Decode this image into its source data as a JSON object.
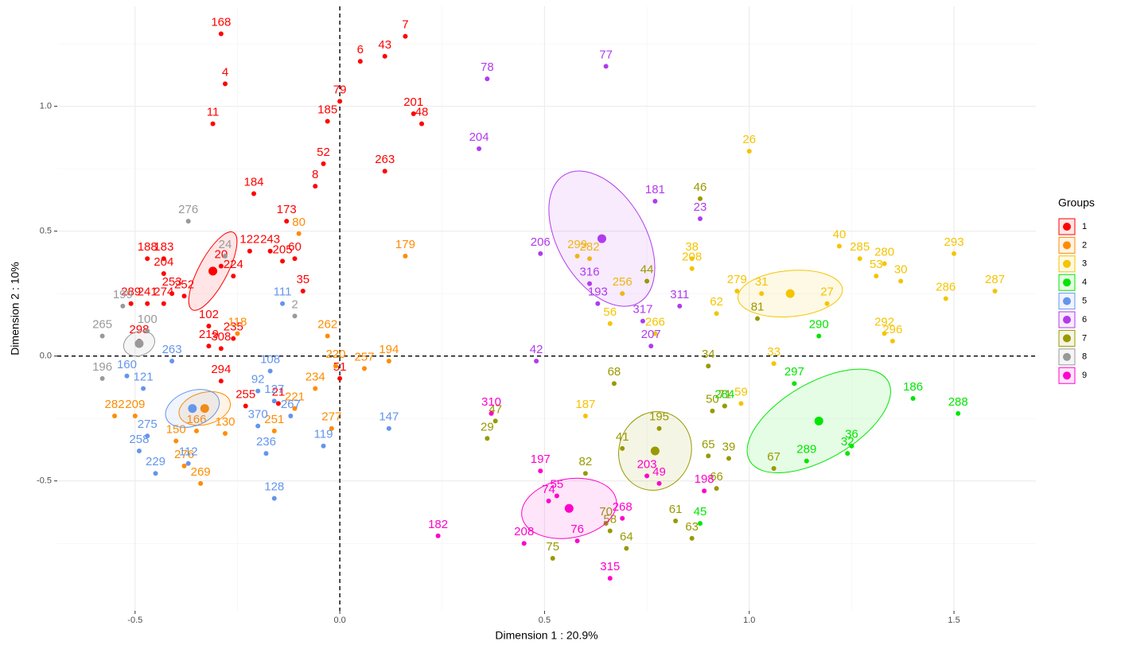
{
  "chart_data": {
    "type": "scatter",
    "x_label": "Dimension 1 : 20.9%",
    "y_label": "Dimension 2 : 10%",
    "legend_title": "Groups",
    "legend": "right",
    "grid": true,
    "origin_lines": true,
    "xlim": [
      -0.69,
      1.7
    ],
    "ylim": [
      -1.02,
      1.4
    ],
    "xticks": [
      -0.5,
      {
        "value": 0,
        "label": "0.0"
      },
      0.5,
      {
        "value": 1,
        "label": "1.0"
      },
      1.5
    ],
    "yticks": [
      -0.5,
      {
        "value": 0,
        "label": "0.0"
      },
      0.5,
      {
        "value": 1,
        "label": "1.0"
      }
    ],
    "xminor": [
      -0.25,
      0.25,
      0.75,
      1.25
    ],
    "yminor": [
      -0.75,
      -0.25,
      0.25,
      0.75,
      1.25
    ],
    "series": [
      {
        "name": "1",
        "color": "#ff0000",
        "centroid": [
          -0.31,
          0.34
        ],
        "ellipse": [
          0.107,
          0.057,
          -62
        ],
        "labels": [
          "168",
          "4",
          "11",
          "7",
          "6",
          "43",
          "79",
          "185",
          "201",
          "48",
          "52",
          "8",
          "263",
          "184",
          "173",
          "122",
          "243",
          "205",
          "60",
          "20",
          "224",
          "35",
          "102",
          "235",
          "219",
          "308",
          "51",
          "294",
          "255",
          "21",
          "188",
          "183",
          "204",
          "289",
          "241",
          "253",
          "252",
          "274",
          "298"
        ],
        "x": [
          -0.29,
          -0.28,
          -0.31,
          0.16,
          0.05,
          0.11,
          0.0,
          -0.03,
          0.18,
          0.2,
          -0.04,
          -0.06,
          0.11,
          -0.21,
          -0.13,
          -0.22,
          -0.17,
          -0.14,
          -0.11,
          -0.29,
          -0.26,
          -0.09,
          -0.32,
          -0.26,
          -0.32,
          -0.29,
          0.0,
          -0.29,
          -0.23,
          -0.15,
          -0.47,
          -0.43,
          -0.43,
          -0.51,
          -0.47,
          -0.41,
          -0.38,
          -0.43,
          -0.49
        ],
        "values": [
          1.29,
          1.09,
          0.93,
          1.28,
          1.18,
          1.2,
          1.02,
          0.94,
          0.97,
          0.93,
          0.77,
          0.68,
          0.74,
          0.65,
          0.54,
          0.42,
          0.42,
          0.38,
          0.39,
          0.36,
          0.32,
          0.26,
          0.12,
          0.07,
          0.04,
          0.03,
          -0.09,
          -0.1,
          -0.2,
          -0.19,
          0.39,
          0.39,
          0.33,
          0.21,
          0.21,
          0.25,
          0.24,
          0.21,
          0.06
        ]
      },
      {
        "name": "2",
        "color": "#ff8c00",
        "centroid": [
          -0.33,
          -0.21
        ],
        "ellipse": [
          0.064,
          0.064,
          -15
        ],
        "labels": [
          "80",
          "179",
          "262",
          "220",
          "257",
          "194",
          "234",
          "221",
          "277",
          "251",
          "269",
          "276",
          "166",
          "130",
          "209",
          "282",
          "118",
          "150"
        ],
        "x": [
          -0.1,
          0.16,
          -0.03,
          -0.01,
          0.06,
          0.12,
          -0.06,
          -0.11,
          -0.02,
          -0.16,
          -0.34,
          -0.38,
          -0.35,
          -0.28,
          -0.5,
          -0.55,
          -0.25,
          -0.4
        ],
        "values": [
          0.49,
          0.4,
          0.08,
          -0.04,
          -0.05,
          -0.02,
          -0.13,
          -0.21,
          -0.29,
          -0.3,
          -0.51,
          -0.44,
          -0.3,
          -0.31,
          -0.24,
          -0.24,
          0.09,
          -0.34
        ]
      },
      {
        "name": "3",
        "color": "#f5c400",
        "centroid": [
          1.1,
          0.25
        ],
        "ellipse": [
          0.128,
          0.092,
          -5
        ],
        "labels": [
          "26",
          "40",
          "285",
          "280",
          "53",
          "30",
          "293",
          "287",
          "286",
          "292",
          "296",
          "27",
          "31",
          "279",
          "38",
          "208",
          "299",
          "282",
          "256",
          "56",
          "62",
          "266",
          "33",
          "59",
          "187"
        ],
        "x": [
          1.0,
          1.22,
          1.27,
          1.33,
          1.31,
          1.37,
          1.5,
          1.6,
          1.48,
          1.33,
          1.35,
          1.19,
          1.03,
          0.97,
          0.86,
          0.86,
          0.58,
          0.61,
          0.69,
          0.66,
          0.92,
          0.77,
          1.06,
          0.98,
          0.6
        ],
        "values": [
          0.82,
          0.44,
          0.39,
          0.37,
          0.32,
          0.3,
          0.41,
          0.26,
          0.23,
          0.09,
          0.06,
          0.21,
          0.25,
          0.26,
          0.39,
          0.35,
          0.4,
          0.39,
          0.25,
          0.13,
          0.17,
          0.09,
          -0.03,
          -0.19,
          -0.24
        ]
      },
      {
        "name": "4",
        "color": "#00e600",
        "centroid": [
          1.17,
          -0.26
        ],
        "ellipse": [
          0.195,
          0.153,
          -30
        ],
        "labels": [
          "290",
          "297",
          "186",
          "288",
          "284",
          "32",
          "36",
          "289",
          "45"
        ],
        "x": [
          1.17,
          1.11,
          1.4,
          1.51,
          0.94,
          1.24,
          1.25,
          1.14,
          0.88
        ],
        "values": [
          0.08,
          -0.11,
          -0.17,
          -0.23,
          -0.2,
          -0.39,
          -0.36,
          -0.42,
          -0.67
        ]
      },
      {
        "name": "5",
        "color": "#6495ed",
        "centroid": [
          -0.36,
          -0.21
        ],
        "ellipse": [
          0.068,
          0.07,
          -20
        ],
        "labels": [
          "111",
          "108",
          "92",
          "127",
          "370",
          "267",
          "236",
          "119",
          "128",
          "147",
          "229",
          "258",
          "275",
          "160",
          "121",
          "263",
          "112"
        ],
        "x": [
          -0.14,
          -0.17,
          -0.2,
          -0.16,
          -0.2,
          -0.12,
          -0.18,
          -0.04,
          -0.16,
          0.12,
          -0.45,
          -0.49,
          -0.47,
          -0.52,
          -0.48,
          -0.41,
          -0.37
        ],
        "values": [
          0.21,
          -0.06,
          -0.14,
          -0.18,
          -0.28,
          -0.24,
          -0.39,
          -0.36,
          -0.57,
          -0.29,
          -0.47,
          -0.38,
          -0.32,
          -0.08,
          -0.13,
          -0.02,
          -0.43
        ]
      },
      {
        "name": "6",
        "color": "#b23aee",
        "centroid": [
          0.64,
          0.47
        ],
        "ellipse": [
          0.107,
          0.296,
          -30
        ],
        "labels": [
          "78",
          "77",
          "204",
          "181",
          "23",
          "206",
          "316",
          "193",
          "317",
          "311",
          "207",
          "42"
        ],
        "x": [
          0.36,
          0.65,
          0.34,
          0.77,
          0.88,
          0.49,
          0.61,
          0.63,
          0.74,
          0.83,
          0.76,
          0.48
        ],
        "values": [
          1.11,
          1.16,
          0.83,
          0.62,
          0.55,
          0.41,
          0.29,
          0.21,
          0.14,
          0.2,
          0.04,
          -0.02
        ]
      },
      {
        "name": "7",
        "color": "#999900",
        "centroid": [
          0.77,
          -0.38
        ],
        "ellipse": [
          0.088,
          0.159,
          20
        ],
        "labels": [
          "46",
          "44",
          "81",
          "34",
          "68",
          "71",
          "50",
          "47",
          "29",
          "195",
          "41",
          "65",
          "39",
          "67",
          "66",
          "82",
          "61",
          "63",
          "64",
          "75",
          "70",
          "58"
        ],
        "x": [
          0.88,
          0.75,
          1.02,
          0.9,
          0.67,
          0.94,
          0.91,
          0.38,
          0.36,
          0.78,
          0.69,
          0.9,
          0.95,
          1.06,
          0.92,
          0.6,
          0.82,
          0.86,
          0.7,
          0.52,
          0.65,
          0.66
        ],
        "values": [
          0.63,
          0.3,
          0.15,
          -0.04,
          -0.11,
          -0.2,
          -0.22,
          -0.26,
          -0.33,
          -0.29,
          -0.37,
          -0.4,
          -0.41,
          -0.45,
          -0.53,
          -0.47,
          -0.66,
          -0.73,
          -0.77,
          -0.81,
          -0.67,
          -0.7
        ]
      },
      {
        "name": "8",
        "color": "#999999",
        "centroid": [
          -0.49,
          0.05
        ],
        "ellipse": [
          0.039,
          0.048,
          -20
        ],
        "labels": [
          "276",
          "24",
          "199",
          "100",
          "2",
          "265",
          "196"
        ],
        "x": [
          -0.37,
          -0.28,
          -0.53,
          -0.47,
          -0.11,
          -0.58,
          -0.58
        ],
        "values": [
          0.54,
          0.4,
          0.2,
          0.1,
          0.16,
          0.08,
          -0.09
        ]
      },
      {
        "name": "9",
        "color": "#ff00cc",
        "centroid": [
          0.56,
          -0.61
        ],
        "ellipse": [
          0.117,
          0.118,
          -10
        ],
        "labels": [
          "310",
          "197",
          "55",
          "74",
          "76",
          "182",
          "208",
          "315",
          "203",
          "49",
          "198",
          "268"
        ],
        "x": [
          0.37,
          0.49,
          0.53,
          0.51,
          0.58,
          0.24,
          0.45,
          0.66,
          0.75,
          0.78,
          0.89,
          0.69
        ],
        "values": [
          -0.23,
          -0.46,
          -0.56,
          -0.58,
          -0.74,
          -0.72,
          -0.75,
          -0.89,
          -0.48,
          -0.51,
          -0.54,
          -0.65
        ]
      }
    ]
  }
}
